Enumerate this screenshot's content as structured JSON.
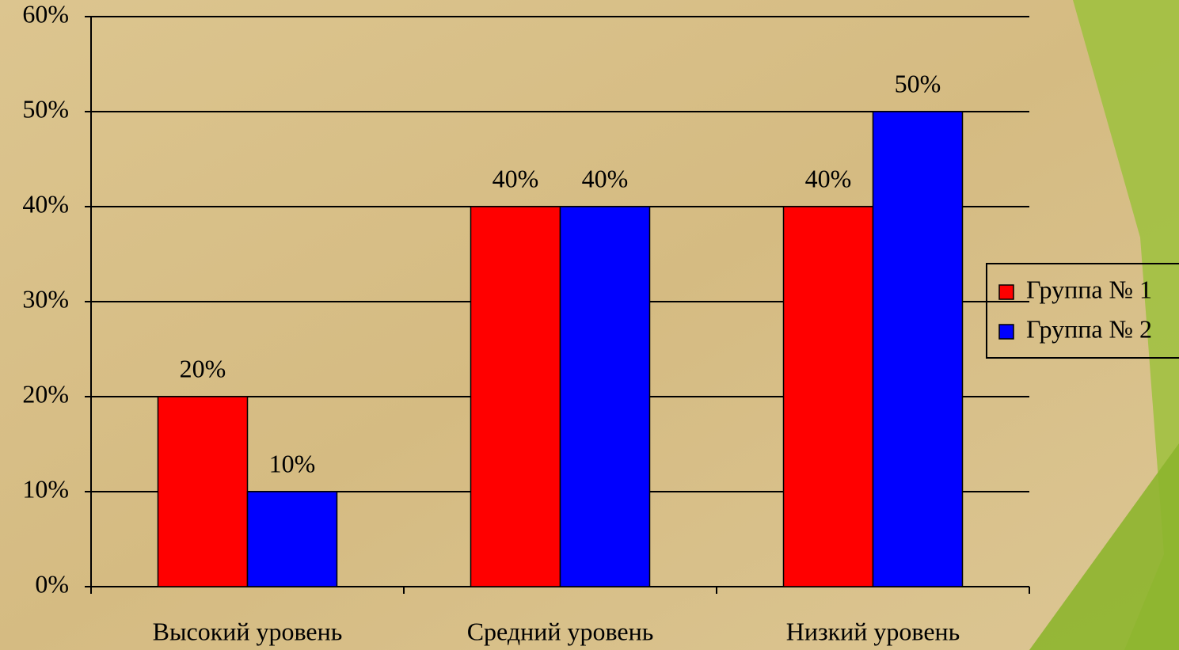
{
  "chart_data": {
    "type": "bar",
    "categories": [
      "Высокий уровень",
      "Средний уровень",
      "Низкий уровень"
    ],
    "series": [
      {
        "name": "Группа № 1",
        "color": "#ff0000",
        "values": [
          20,
          40,
          40
        ],
        "value_labels": [
          "20%",
          "40%",
          "40%"
        ]
      },
      {
        "name": "Группа № 2",
        "color": "#0000ff",
        "values": [
          10,
          40,
          50
        ],
        "value_labels": [
          "10%",
          "40%",
          "50%"
        ]
      }
    ],
    "ylim": [
      0,
      60
    ],
    "yticks": [
      {
        "value": 0,
        "label": "0%"
      },
      {
        "value": 10,
        "label": "10%"
      },
      {
        "value": 20,
        "label": "20%"
      },
      {
        "value": 30,
        "label": "30%"
      },
      {
        "value": 40,
        "label": "40%"
      },
      {
        "value": 50,
        "label": "50%"
      },
      {
        "value": 60,
        "label": "60%"
      }
    ],
    "grid": true,
    "legend": "right"
  }
}
